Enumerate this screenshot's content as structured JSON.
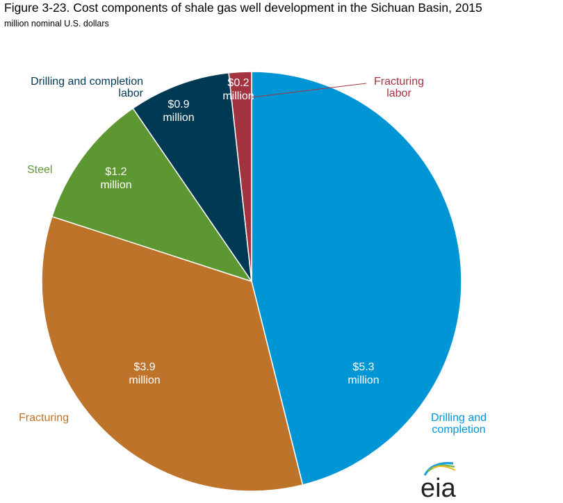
{
  "title": "Figure 3-23. Cost components of shale gas well development in the Sichuan Basin, 2015",
  "subtitle": "million nominal U.S. dollars",
  "logo": {
    "text": "eia",
    "swoosh_colors": [
      "#1aa0da",
      "#78b943",
      "#f2b61c"
    ]
  },
  "chart_data": {
    "type": "pie",
    "unit": "million nominal U.S. dollars",
    "start": "12 o'clock",
    "direction": "clockwise",
    "slices": [
      {
        "key": "drilling",
        "label_lines": [
          "Drilling and",
          "completion"
        ],
        "value": 5.3,
        "value_lines": [
          "$5.3",
          "million"
        ],
        "color": "#0096d6"
      },
      {
        "key": "fracturing",
        "label_lines": [
          "Fracturing"
        ],
        "value": 3.9,
        "value_lines": [
          "$3.9",
          "million"
        ],
        "color": "#bd732a"
      },
      {
        "key": "steel",
        "label_lines": [
          "Steel"
        ],
        "value": 1.2,
        "value_lines": [
          "$1.2",
          "million"
        ],
        "color": "#5d9732"
      },
      {
        "key": "drilling_labor",
        "label_lines": [
          "Drilling and completion",
          "labor"
        ],
        "value": 0.9,
        "value_lines": [
          "$0.9",
          "million"
        ],
        "color": "#003953"
      },
      {
        "key": "fracturing_labor",
        "label_lines": [
          "Fracturing",
          "labor"
        ],
        "value": 0.2,
        "value_lines": [
          "$0.2",
          "million"
        ],
        "color": "#a33340"
      }
    ]
  }
}
